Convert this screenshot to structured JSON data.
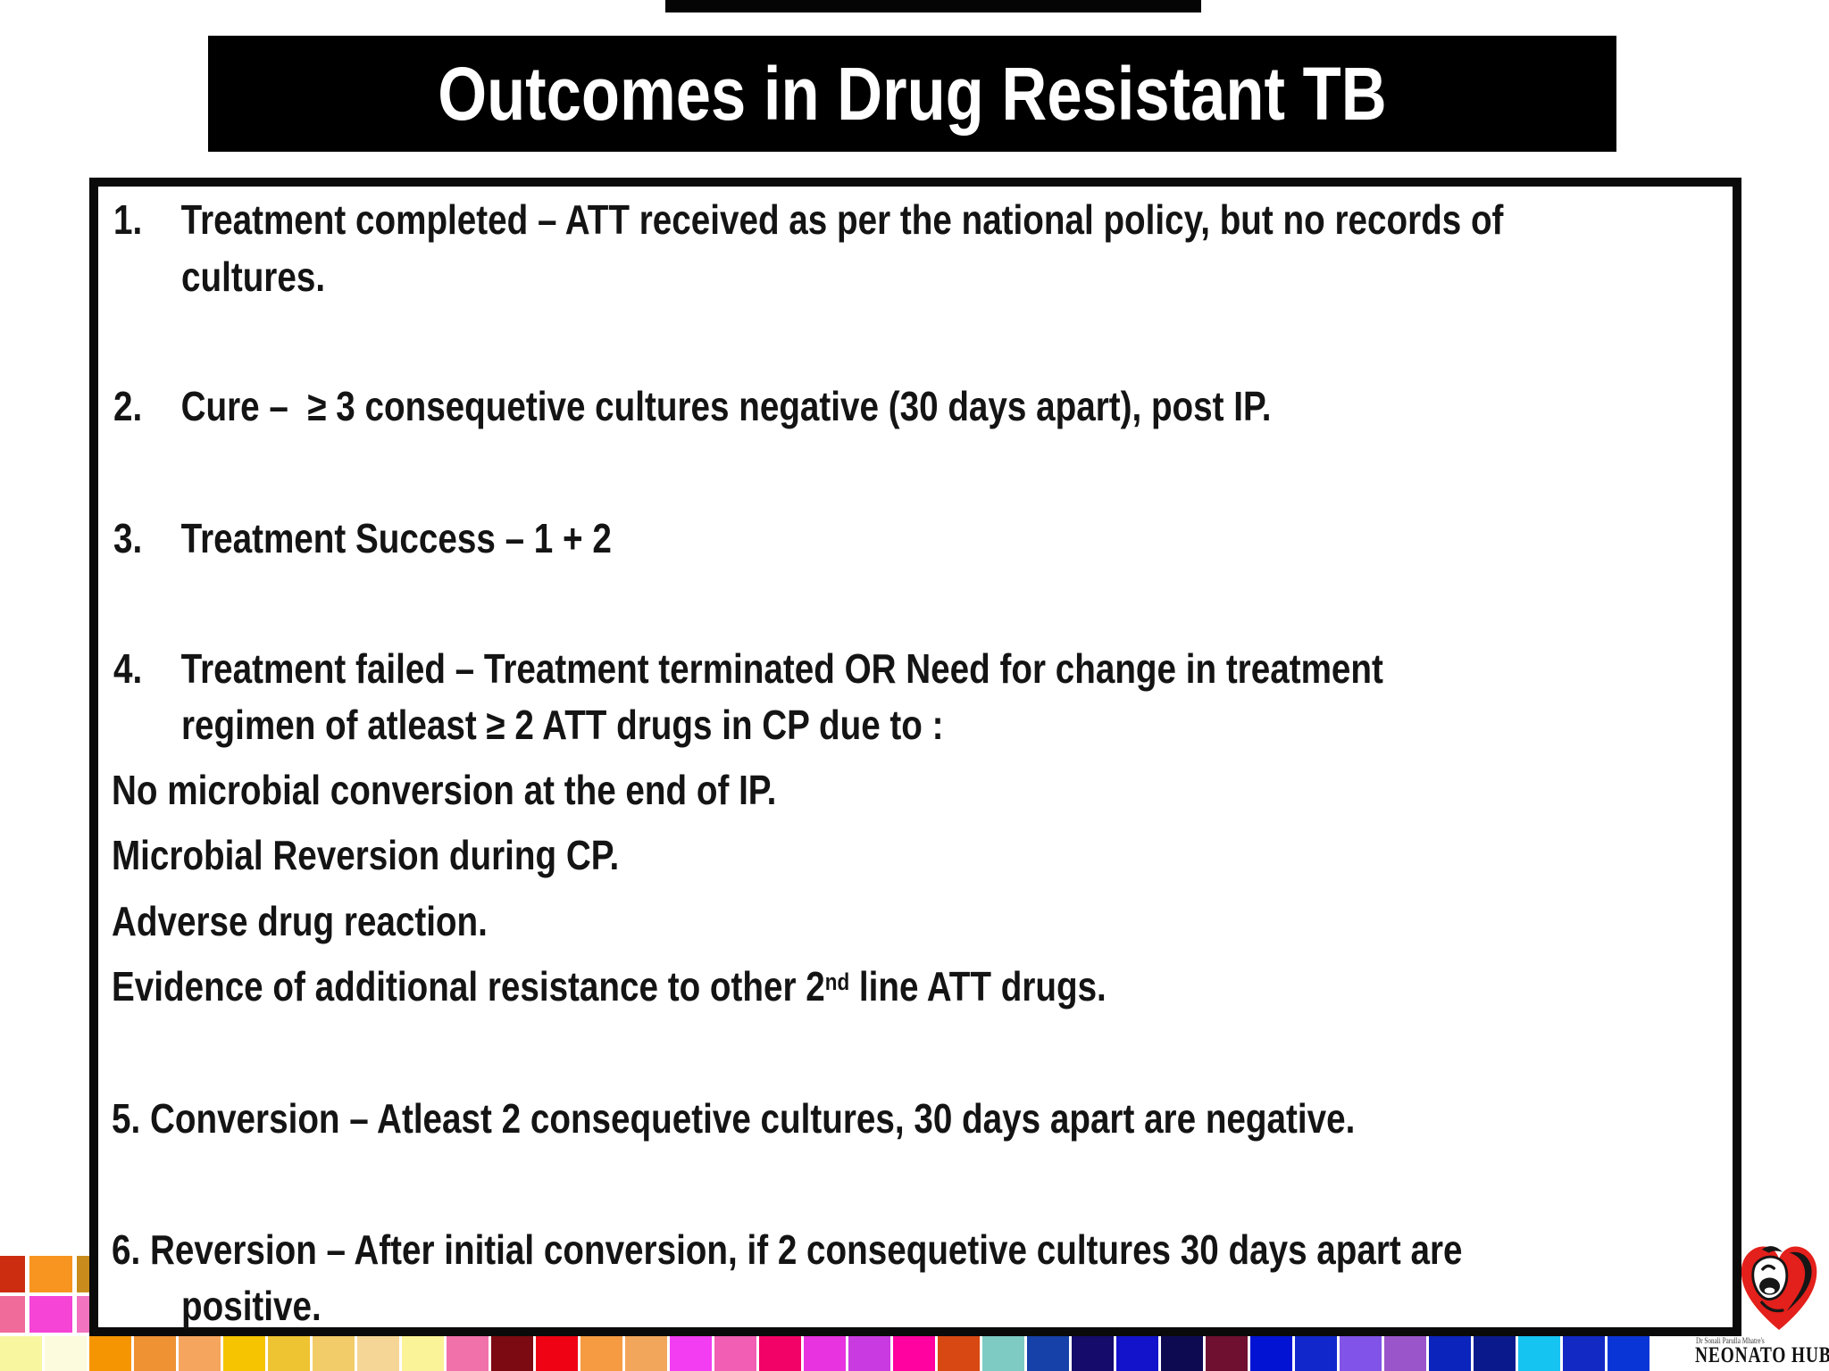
{
  "title": {
    "text": "Outcomes in Drug Resistant TB",
    "bg_color": "#000000",
    "text_color": "#ffffff"
  },
  "box": {
    "lines": [
      {
        "n": "1.",
        "t": "Treatment completed – ATT received as per the national policy, but no records of"
      },
      {
        "t": "cultures."
      },
      {
        "n": "2.",
        "t": "Cure –  ≥ 3 consequetive cultures negative (30 days apart), post IP."
      },
      {
        "n": "3.",
        "t": "Treatment Success – 1 + 2"
      },
      {
        "n": "4.",
        "t": "Treatment failed – Treatment terminated OR Need for change in treatment"
      },
      {
        "t": "regimen of atleast ≥ 2 ATT drugs in CP due to :"
      },
      {
        "t": "No microbial conversion at the end of IP."
      },
      {
        "t": "Microbial Reversion during CP."
      },
      {
        "t": "Adverse drug reaction."
      },
      {
        "pre": "Evidence of additional resistance to other 2",
        "sup": "nd",
        "post": " line ATT drugs."
      },
      {
        "t": "5. Conversion – Atleast 2 consequetive cultures, 30 days apart are negative."
      },
      {
        "t": "6. Reversion – After initial conversion, if 2 consequetive cultures 30 days apart are"
      },
      {
        "t": "positive."
      }
    ]
  },
  "logo": {
    "owner_small_text": "Dr Sonali Parulla Mhatre's",
    "brand": "NEONATO HUB",
    "heart_color": "#e3201b"
  },
  "palette": {
    "left_grid_row1": [
      "#cc2d10",
      "#f79520",
      "#c98c1c"
    ],
    "left_grid_row2": [
      "#f06a9a",
      "#f544d6",
      "#f273c0"
    ],
    "strip": [
      "#f8f7a0",
      "#fdfbdd",
      "#f69502",
      "#ee9233",
      "#f6a55e",
      "#f6c400",
      "#efc432",
      "#f2cc68",
      "#f6d696",
      "#fbf398",
      "#f172ab",
      "#7c0a12",
      "#ee0213",
      "#f69b41",
      "#f2a65b",
      "#f23df2",
      "#f25eb4",
      "#f20267",
      "#e833e0",
      "#c93be0",
      "#ff02a0",
      "#d84812",
      "#7ecbc4",
      "#1641a8",
      "#150b6b",
      "#1313cb",
      "#0d0a52",
      "#701031",
      "#0213d4",
      "#1227cb",
      "#8153e8",
      "#9b55cb",
      "#0b24bc",
      "#0a1a8c",
      "#16c4f2",
      "#1229c4",
      "#0a35d6"
    ]
  }
}
